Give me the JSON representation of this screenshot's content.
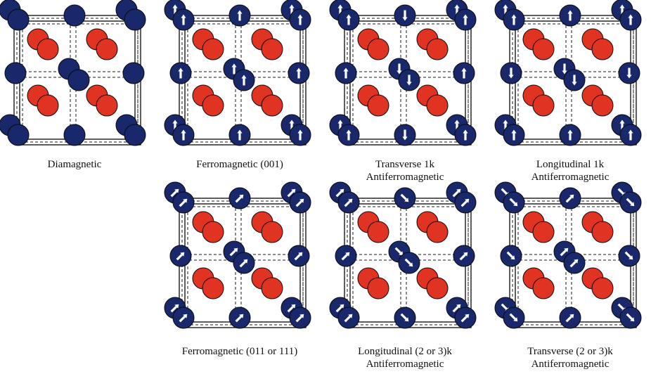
{
  "colors": {
    "magnetic_atom": "#18286b",
    "nonmagnetic_atom": "#e03322",
    "spin_arrow": "#ffffff",
    "frame": "#1a1a1a"
  },
  "panels": [
    {
      "key": "diamagnetic",
      "caption": [
        "Diamagnetic"
      ],
      "spins": {
        "corner": null,
        "faceV": null,
        "faceH": null,
        "center": null
      }
    },
    {
      "key": "ferro-001",
      "caption": [
        "Ferromagnetic (001)"
      ],
      "spins": {
        "corner": "up",
        "faceV": "up",
        "faceH": "up",
        "center": "up"
      }
    },
    {
      "key": "transverse-1k",
      "caption": [
        "Transverse 1k",
        "Antiferromagnetic"
      ],
      "spins": {
        "corner": "up",
        "faceV": "down",
        "faceH": "up",
        "center": "down"
      }
    },
    {
      "key": "longitudinal-1k",
      "caption": [
        "Longitudinal 1k",
        "Antiferromagnetic"
      ],
      "spins": {
        "corner": "up",
        "faceV": "up",
        "faceH": "down",
        "center": "down"
      }
    },
    {
      "key": "ferro-011-111",
      "caption": [
        "Ferromagnetic (011 or 111)"
      ],
      "spins": {
        "corner": "diag-up",
        "faceV": "diag-up",
        "faceH": "diag-up",
        "center": "diag-up"
      }
    },
    {
      "key": "longitudinal-2-3k",
      "caption": [
        "Longitudinal (2 or 3)k",
        "Antiferromagnetic"
      ],
      "spins": {
        "corner": "diag-up",
        "faceV": "diag-down",
        "faceH": "diag-up",
        "center": "diag-down"
      }
    },
    {
      "key": "transverse-2-3k",
      "caption": [
        "Transverse (2 or 3)k",
        "Antiferromagnetic"
      ],
      "spins": {
        "corner": "diag-down",
        "faceV": "diag-up",
        "faceH": "diag-down",
        "center": "diag-up"
      }
    }
  ]
}
